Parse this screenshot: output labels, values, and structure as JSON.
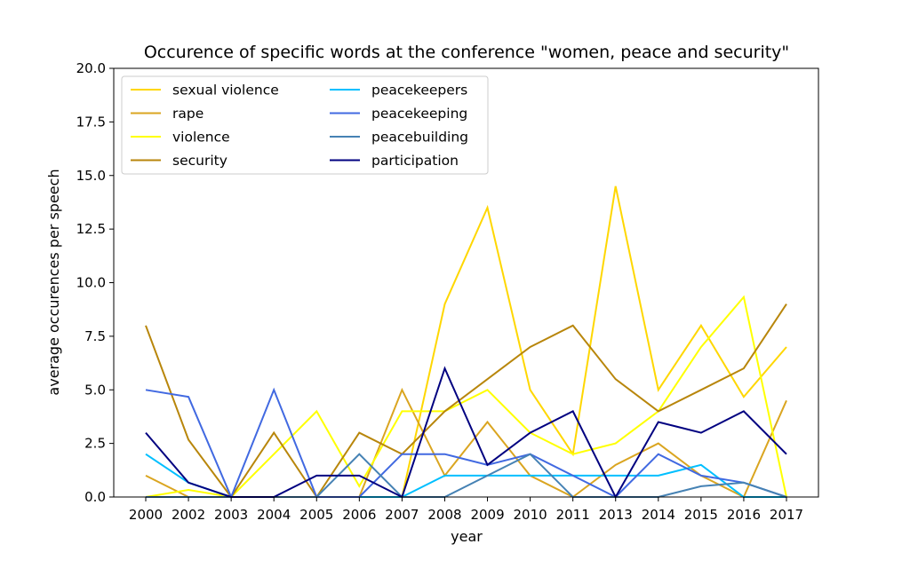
{
  "chart_data": {
    "type": "line",
    "title": "Occurence of specific words at the conference \"women, peace and security\"",
    "xlabel": "year",
    "ylabel": "average occurences per speech",
    "categories": [
      "2000",
      "2002",
      "2003",
      "2004",
      "2005",
      "2006",
      "2007",
      "2008",
      "2009",
      "2010",
      "2011",
      "2013",
      "2014",
      "2015",
      "2016",
      "2017"
    ],
    "ylim": [
      0,
      20
    ],
    "yticks": [
      "0.0",
      "2.5",
      "5.0",
      "7.5",
      "10.0",
      "12.5",
      "15.0",
      "17.5",
      "20.0"
    ],
    "grid": false,
    "legend_position": "top-left",
    "series": [
      {
        "name": "sexual violence",
        "color": "#FFD700",
        "values": [
          0,
          0,
          0,
          0,
          0,
          0,
          0,
          9,
          13.5,
          5,
          2,
          14.5,
          5,
          8,
          4.67,
          7
        ]
      },
      {
        "name": "rape",
        "color": "#DAA520",
        "values": [
          1,
          0,
          0,
          0,
          0,
          0,
          5,
          1,
          3.5,
          1,
          0,
          1.5,
          2.5,
          1,
          0,
          4.5
        ]
      },
      {
        "name": "violence",
        "color": "#FFFF00",
        "values": [
          0,
          0.33,
          0,
          2,
          4,
          0.5,
          4,
          4,
          5,
          3,
          2,
          2.5,
          4,
          7,
          9.33,
          0
        ]
      },
      {
        "name": "security",
        "color": "#B8860B",
        "values": [
          8,
          2.67,
          0,
          3,
          0,
          3,
          2,
          4,
          5.5,
          7,
          8,
          5.5,
          4,
          5,
          6,
          9
        ]
      },
      {
        "name": "peacekeepers",
        "color": "#00BFFF",
        "values": [
          2,
          0.67,
          0,
          0,
          0,
          0,
          0,
          1,
          1,
          1,
          1,
          1,
          1,
          1.5,
          0,
          0
        ]
      },
      {
        "name": "peacekeeping",
        "color": "#4169E1",
        "values": [
          5,
          4.67,
          0,
          5,
          0,
          0,
          2,
          2,
          1.5,
          2,
          1,
          0,
          2,
          1,
          0.67,
          0
        ]
      },
      {
        "name": "peacebuilding",
        "color": "#4682B4",
        "values": [
          0,
          0,
          0,
          0,
          0,
          2,
          0,
          0,
          1,
          2,
          0,
          0,
          0,
          0.5,
          0.67,
          0
        ]
      },
      {
        "name": "participation",
        "color": "#000080",
        "values": [
          3,
          0.67,
          0,
          0,
          1,
          1,
          0,
          6,
          1.5,
          3,
          4,
          0,
          3.5,
          3,
          4,
          2
        ]
      }
    ]
  }
}
